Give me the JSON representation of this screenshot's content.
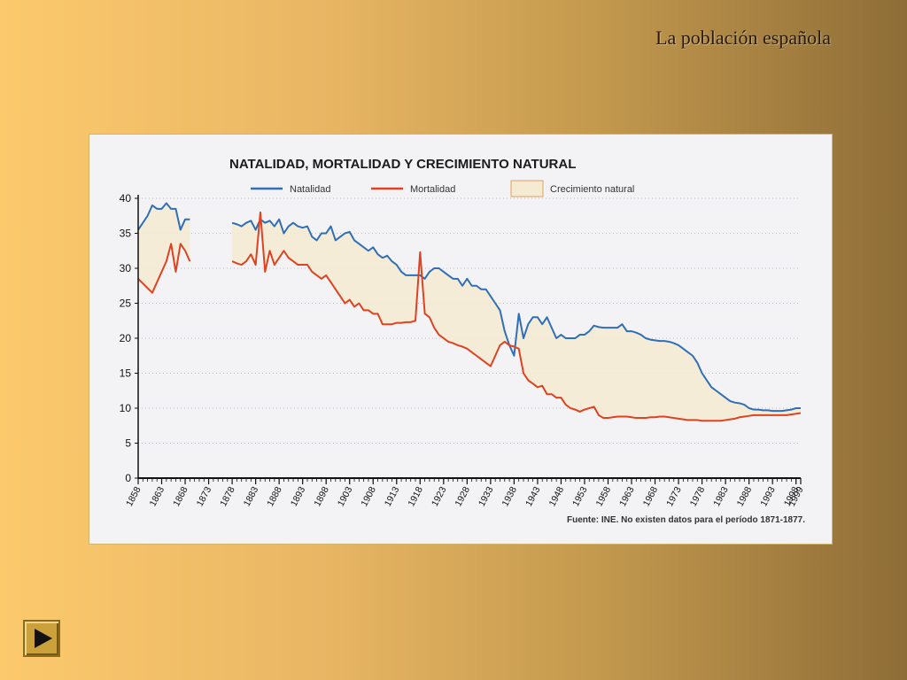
{
  "slide": {
    "title": "La población española"
  },
  "colors": {
    "natalidad": "#2f6fb5",
    "mortalidad": "#e0421f",
    "crecimiento_fill": "#f5ead2",
    "crecimiento_border": "#e0a060"
  },
  "icons": {
    "nav": "play-icon"
  },
  "chart_data": {
    "type": "line",
    "title": "NATALIDAD, MORTALIDAD Y CRECIMIENTO NATURAL",
    "source": "Fuente: INE. No existen datos para el período 1871-1877.",
    "xlim": [
      1858,
      1999
    ],
    "ylim": [
      0,
      40
    ],
    "yticks": [
      0,
      5,
      10,
      15,
      20,
      25,
      30,
      35,
      40
    ],
    "xticks": [
      1858,
      1863,
      1868,
      1873,
      1878,
      1883,
      1888,
      1893,
      1898,
      1903,
      1908,
      1913,
      1918,
      1923,
      1928,
      1933,
      1938,
      1943,
      1948,
      1953,
      1958,
      1963,
      1968,
      1973,
      1978,
      1983,
      1988,
      1993,
      1998,
      1999
    ],
    "grid": "horizontal-dotted",
    "legend": {
      "placement": "top",
      "entries": [
        "Natalidad",
        "Mortalidad",
        "Crecimiento natural"
      ]
    },
    "series": [
      {
        "name": "Natalidad",
        "segments": [
          [
            [
              1858,
              35.5
            ],
            [
              1860,
              37.5
            ],
            [
              1861,
              39
            ],
            [
              1862,
              38.5
            ],
            [
              1863,
              38.5
            ],
            [
              1864,
              39.3
            ],
            [
              1865,
              38.5
            ],
            [
              1866,
              38.5
            ],
            [
              1867,
              35.5
            ],
            [
              1868,
              37
            ],
            [
              1869,
              37
            ]
          ],
          [
            [
              1878,
              36.5
            ],
            [
              1879,
              36.3
            ],
            [
              1880,
              36
            ],
            [
              1881,
              36.5
            ],
            [
              1882,
              36.8
            ],
            [
              1883,
              35.5
            ],
            [
              1884,
              37
            ],
            [
              1885,
              36.5
            ],
            [
              1886,
              36.8
            ],
            [
              1887,
              36
            ],
            [
              1888,
              37
            ],
            [
              1889,
              35
            ],
            [
              1890,
              36
            ],
            [
              1891,
              36.5
            ],
            [
              1892,
              36
            ],
            [
              1893,
              35.8
            ],
            [
              1894,
              36
            ],
            [
              1895,
              34.5
            ],
            [
              1896,
              34
            ],
            [
              1897,
              35
            ],
            [
              1898,
              35
            ],
            [
              1899,
              36
            ],
            [
              1900,
              34
            ],
            [
              1901,
              34.5
            ],
            [
              1902,
              35
            ],
            [
              1903,
              35.2
            ],
            [
              1904,
              34
            ],
            [
              1905,
              33.5
            ],
            [
              1906,
              33
            ],
            [
              1907,
              32.5
            ],
            [
              1908,
              33
            ],
            [
              1909,
              32
            ],
            [
              1910,
              31.5
            ],
            [
              1911,
              31.8
            ],
            [
              1912,
              31
            ],
            [
              1913,
              30.5
            ],
            [
              1914,
              29.5
            ],
            [
              1915,
              29
            ],
            [
              1916,
              29
            ],
            [
              1917,
              29
            ],
            [
              1918,
              29
            ],
            [
              1919,
              28.5
            ],
            [
              1920,
              29.5
            ],
            [
              1921,
              30
            ],
            [
              1922,
              30
            ],
            [
              1923,
              29.5
            ],
            [
              1924,
              29
            ],
            [
              1925,
              28.5
            ],
            [
              1926,
              28.5
            ],
            [
              1927,
              27.5
            ],
            [
              1928,
              28.5
            ],
            [
              1929,
              27.5
            ],
            [
              1930,
              27.5
            ],
            [
              1931,
              27
            ],
            [
              1932,
              27
            ],
            [
              1933,
              26
            ],
            [
              1934,
              25
            ],
            [
              1935,
              24
            ],
            [
              1936,
              21
            ],
            [
              1937,
              19
            ],
            [
              1938,
              17.5
            ],
            [
              1939,
              23.5
            ],
            [
              1940,
              20
            ],
            [
              1941,
              22
            ],
            [
              1942,
              23
            ],
            [
              1943,
              23
            ],
            [
              1944,
              22
            ],
            [
              1945,
              23
            ],
            [
              1946,
              21.5
            ],
            [
              1947,
              20
            ],
            [
              1948,
              20.5
            ],
            [
              1949,
              20
            ],
            [
              1950,
              20
            ],
            [
              1951,
              20
            ],
            [
              1952,
              20.5
            ],
            [
              1953,
              20.5
            ],
            [
              1954,
              21
            ],
            [
              1955,
              21.8
            ],
            [
              1956,
              21.6
            ],
            [
              1957,
              21.5
            ],
            [
              1958,
              21.5
            ],
            [
              1959,
              21.5
            ],
            [
              1960,
              21.5
            ],
            [
              1961,
              22
            ],
            [
              1962,
              21
            ],
            [
              1963,
              21
            ],
            [
              1964,
              20.8
            ],
            [
              1965,
              20.5
            ],
            [
              1966,
              20
            ],
            [
              1967,
              19.8
            ],
            [
              1968,
              19.7
            ],
            [
              1969,
              19.6
            ],
            [
              1970,
              19.6
            ],
            [
              1971,
              19.5
            ],
            [
              1972,
              19.3
            ],
            [
              1973,
              19
            ],
            [
              1974,
              18.5
            ],
            [
              1975,
              18
            ],
            [
              1976,
              17.5
            ],
            [
              1977,
              16.5
            ],
            [
              1978,
              15
            ],
            [
              1979,
              14
            ],
            [
              1980,
              13
            ],
            [
              1981,
              12.5
            ],
            [
              1982,
              12
            ],
            [
              1983,
              11.5
            ],
            [
              1984,
              11
            ],
            [
              1985,
              10.8
            ],
            [
              1986,
              10.7
            ],
            [
              1987,
              10.5
            ],
            [
              1988,
              10
            ],
            [
              1989,
              9.8
            ],
            [
              1990,
              9.8
            ],
            [
              1991,
              9.7
            ],
            [
              1992,
              9.7
            ],
            [
              1993,
              9.6
            ],
            [
              1994,
              9.6
            ],
            [
              1995,
              9.6
            ],
            [
              1996,
              9.7
            ],
            [
              1997,
              9.8
            ],
            [
              1998,
              10
            ],
            [
              1999,
              10
            ]
          ]
        ]
      },
      {
        "name": "Mortalidad",
        "segments": [
          [
            [
              1858,
              28.5
            ],
            [
              1861,
              26.5
            ],
            [
              1862,
              28
            ],
            [
              1864,
              31
            ],
            [
              1865,
              33.5
            ],
            [
              1866,
              29.5
            ],
            [
              1867,
              33.5
            ],
            [
              1868,
              32.5
            ],
            [
              1869,
              31
            ]
          ],
          [
            [
              1878,
              31
            ],
            [
              1879,
              30.7
            ],
            [
              1880,
              30.5
            ],
            [
              1881,
              31
            ],
            [
              1882,
              32
            ],
            [
              1883,
              30.5
            ],
            [
              1884,
              38
            ],
            [
              1885,
              29.5
            ],
            [
              1886,
              32.5
            ],
            [
              1887,
              30.5
            ],
            [
              1888,
              31.5
            ],
            [
              1889,
              32.5
            ],
            [
              1890,
              31.5
            ],
            [
              1891,
              31
            ],
            [
              1892,
              30.5
            ],
            [
              1893,
              30.5
            ],
            [
              1894,
              30.5
            ],
            [
              1895,
              29.5
            ],
            [
              1896,
              29
            ],
            [
              1897,
              28.5
            ],
            [
              1898,
              29
            ],
            [
              1899,
              28
            ],
            [
              1900,
              27
            ],
            [
              1901,
              26
            ],
            [
              1902,
              25
            ],
            [
              1903,
              25.5
            ],
            [
              1904,
              24.5
            ],
            [
              1905,
              25
            ],
            [
              1906,
              24
            ],
            [
              1907,
              24
            ],
            [
              1908,
              23.5
            ],
            [
              1909,
              23.5
            ],
            [
              1910,
              22
            ],
            [
              1911,
              22
            ],
            [
              1912,
              22
            ],
            [
              1913,
              22.2
            ],
            [
              1914,
              22.2
            ],
            [
              1915,
              22.3
            ],
            [
              1916,
              22.3
            ],
            [
              1917,
              22.5
            ],
            [
              1918,
              32.3
            ],
            [
              1919,
              23.5
            ],
            [
              1920,
              23
            ],
            [
              1921,
              21.5
            ],
            [
              1922,
              20.5
            ],
            [
              1923,
              20
            ],
            [
              1924,
              19.5
            ],
            [
              1925,
              19.3
            ],
            [
              1926,
              19
            ],
            [
              1927,
              18.8
            ],
            [
              1928,
              18.5
            ],
            [
              1929,
              18
            ],
            [
              1930,
              17.5
            ],
            [
              1931,
              17
            ],
            [
              1932,
              16.5
            ],
            [
              1933,
              16
            ],
            [
              1934,
              17.5
            ],
            [
              1935,
              19
            ],
            [
              1936,
              19.5
            ],
            [
              1937,
              19
            ],
            [
              1938,
              18.8
            ],
            [
              1939,
              18.5
            ],
            [
              1940,
              15
            ],
            [
              1941,
              14
            ],
            [
              1942,
              13.5
            ],
            [
              1943,
              13
            ],
            [
              1944,
              13.2
            ],
            [
              1945,
              12
            ],
            [
              1946,
              12
            ],
            [
              1947,
              11.5
            ],
            [
              1948,
              11.5
            ],
            [
              1949,
              10.5
            ],
            [
              1950,
              10
            ],
            [
              1951,
              9.8
            ],
            [
              1952,
              9.5
            ],
            [
              1953,
              9.8
            ],
            [
              1954,
              10
            ],
            [
              1955,
              10.2
            ],
            [
              1956,
              9
            ],
            [
              1957,
              8.6
            ],
            [
              1958,
              8.6
            ],
            [
              1959,
              8.7
            ],
            [
              1960,
              8.8
            ],
            [
              1961,
              8.8
            ],
            [
              1962,
              8.8
            ],
            [
              1963,
              8.7
            ],
            [
              1964,
              8.6
            ],
            [
              1965,
              8.6
            ],
            [
              1966,
              8.6
            ],
            [
              1967,
              8.7
            ],
            [
              1968,
              8.7
            ],
            [
              1969,
              8.8
            ],
            [
              1970,
              8.8
            ],
            [
              1971,
              8.7
            ],
            [
              1972,
              8.6
            ],
            [
              1973,
              8.5
            ],
            [
              1974,
              8.4
            ],
            [
              1975,
              8.3
            ],
            [
              1976,
              8.3
            ],
            [
              1977,
              8.3
            ],
            [
              1978,
              8.2
            ],
            [
              1979,
              8.2
            ],
            [
              1980,
              8.2
            ],
            [
              1981,
              8.2
            ],
            [
              1982,
              8.2
            ],
            [
              1983,
              8.3
            ],
            [
              1984,
              8.4
            ],
            [
              1985,
              8.5
            ],
            [
              1986,
              8.7
            ],
            [
              1987,
              8.8
            ],
            [
              1988,
              8.9
            ],
            [
              1989,
              9
            ],
            [
              1990,
              9
            ],
            [
              1991,
              9
            ],
            [
              1992,
              9
            ],
            [
              1993,
              9
            ],
            [
              1994,
              9
            ],
            [
              1995,
              9
            ],
            [
              1996,
              9
            ],
            [
              1997,
              9.1
            ],
            [
              1998,
              9.2
            ],
            [
              1999,
              9.3
            ]
          ]
        ]
      }
    ]
  }
}
